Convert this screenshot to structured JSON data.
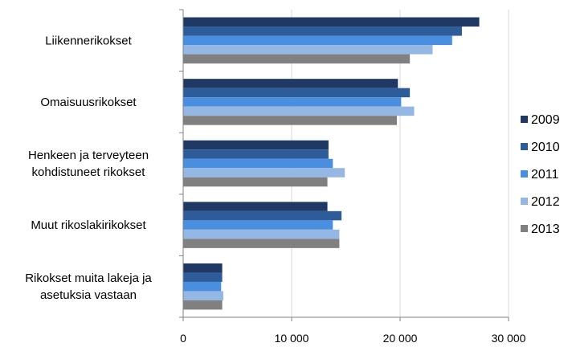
{
  "chart_data": {
    "type": "bar",
    "orientation": "horizontal",
    "title": "",
    "xlabel": "",
    "ylabel": "",
    "xlim": [
      0,
      30000
    ],
    "xticks": [
      0,
      10000,
      20000,
      30000
    ],
    "xtick_labels": [
      "0",
      "10 000",
      "20 000",
      "30 000"
    ],
    "grid": "vertical major gridlines",
    "legend_position": "right",
    "categories": [
      [
        "Liikennerikokset"
      ],
      [
        "Omaisuusrikokset"
      ],
      [
        "Henkeen ja terveyteen",
        "kohdistuneet rikokset"
      ],
      [
        "Muut rikoslakirikokset"
      ],
      [
        "Rikokset muita lakeja ja",
        "asetuksia vastaan"
      ]
    ],
    "series": [
      {
        "name": "2009",
        "color": "#1f3864",
        "values": [
          27300,
          19800,
          13400,
          13300,
          3600
        ]
      },
      {
        "name": "2010",
        "color": "#2e5c9a",
        "values": [
          25700,
          20900,
          13400,
          14600,
          3600
        ]
      },
      {
        "name": "2011",
        "color": "#4a8ee0",
        "values": [
          24800,
          20100,
          13800,
          13800,
          3500
        ]
      },
      {
        "name": "2012",
        "color": "#95b7e3",
        "values": [
          23000,
          21300,
          14900,
          14400,
          3700
        ]
      },
      {
        "name": "2013",
        "color": "#808080",
        "values": [
          20900,
          19700,
          13300,
          14400,
          3600
        ]
      }
    ]
  }
}
